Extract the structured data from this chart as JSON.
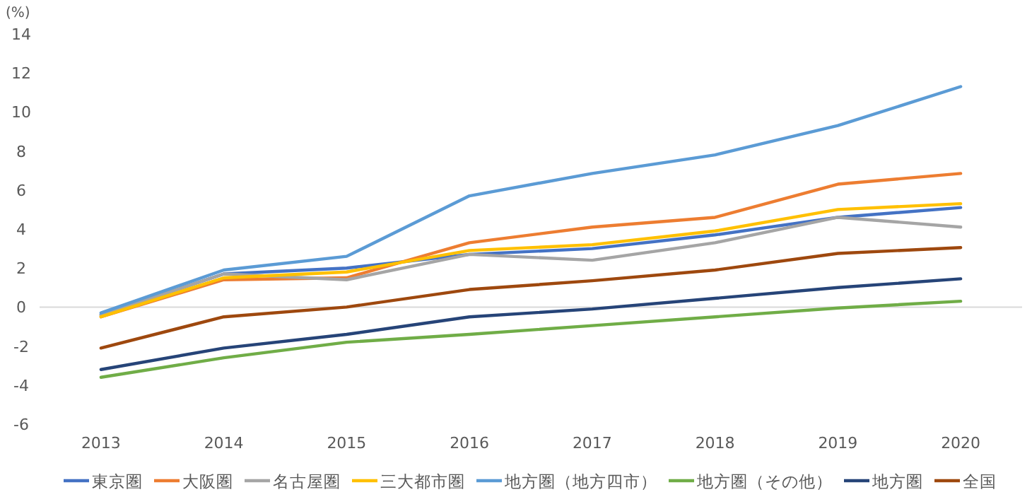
{
  "chart_data": {
    "type": "line",
    "ylabel": "(%)",
    "categories": [
      "2013",
      "2014",
      "2015",
      "2016",
      "2017",
      "2018",
      "2019",
      "2020"
    ],
    "ylim": [
      -6,
      14
    ],
    "yticks": [
      -6,
      -4,
      -2,
      0,
      2,
      4,
      6,
      8,
      10,
      12,
      14
    ],
    "grid": false,
    "ref_lines": [
      {
        "axis": "y",
        "value": 0,
        "color": "#d9d9d9"
      }
    ],
    "legend": "bottom",
    "marker": "none",
    "line_style": "solid",
    "series": [
      {
        "name": "東京圏",
        "color": "#4472c4",
        "values": [
          -0.4,
          1.7,
          2.0,
          2.7,
          3.0,
          3.7,
          4.6,
          5.1
        ]
      },
      {
        "name": "大阪圏",
        "color": "#ed7d31",
        "values": [
          -0.5,
          1.4,
          1.5,
          3.3,
          4.1,
          4.6,
          6.3,
          6.85
        ]
      },
      {
        "name": "名古屋圏",
        "color": "#a5a5a5",
        "values": [
          -0.4,
          1.7,
          1.4,
          2.7,
          2.4,
          3.3,
          4.6,
          4.1
        ]
      },
      {
        "name": "三大都市圏",
        "color": "#ffc000",
        "values": [
          -0.5,
          1.5,
          1.8,
          2.9,
          3.2,
          3.9,
          5.0,
          5.3
        ]
      },
      {
        "name": "地方圏（地方四市）",
        "color": "#5b9bd5",
        "values": [
          -0.3,
          1.9,
          2.6,
          5.7,
          6.85,
          7.8,
          9.3,
          11.3
        ]
      },
      {
        "name": "地方圏（その他）",
        "color": "#70ad47",
        "values": [
          -3.6,
          -2.6,
          -1.8,
          -1.4,
          -0.95,
          -0.5,
          -0.05,
          0.3
        ]
      },
      {
        "name": "地方圏",
        "color": "#264478",
        "values": [
          -3.2,
          -2.1,
          -1.4,
          -0.5,
          -0.1,
          0.45,
          1.0,
          1.45
        ]
      },
      {
        "name": "全国",
        "color": "#9e480e",
        "values": [
          -2.1,
          -0.5,
          0.0,
          0.9,
          1.35,
          1.9,
          2.75,
          3.05
        ]
      }
    ]
  }
}
